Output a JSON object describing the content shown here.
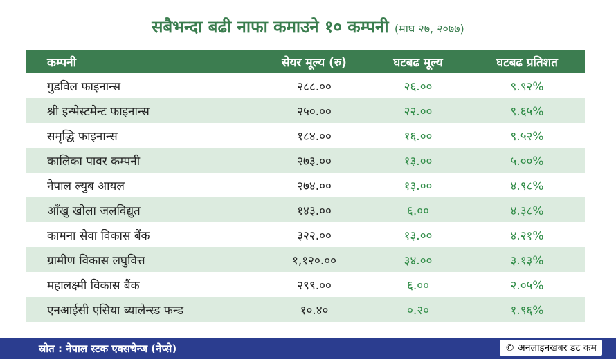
{
  "title": {
    "main": "सबैभन्दा बढी नाफा कमाउने १० कम्पनी",
    "date": "(माघ २७, २०७७)"
  },
  "table": {
    "headers": [
      "कम्पनी",
      "सेयर मूल्य (रु)",
      "घटबढ मूल्य",
      "घटबढ प्रतिशत"
    ],
    "rows": [
      [
        "गुडविल फाइनान्स",
        "२८८.००",
        "२६.००",
        "९.९२%"
      ],
      [
        "श्री इन्भेस्टमेन्ट फाइनान्स",
        "२५०.००",
        "२२.००",
        "९.६५%"
      ],
      [
        "समृद्धि फाइनान्स",
        "१८४.००",
        "१६.००",
        "९.५२%"
      ],
      [
        "कालिका पावर कम्पनी",
        "२७३.००",
        "१३.००",
        "५.००%"
      ],
      [
        "नेपाल ल्युब आयल",
        "२७४.००",
        "१३.००",
        "४.९८%"
      ],
      [
        "आँखु खोला जलविद्युत",
        "१४३.००",
        "६.००",
        "४.३८%"
      ],
      [
        "कामना सेवा विकास बैंक",
        "३२२.००",
        "१३.००",
        "४.२१%"
      ],
      [
        "ग्रामीण विकास लघुवित्त",
        "१,१२०.००",
        "३४.००",
        "३.१३%"
      ],
      [
        "महालक्ष्मी विकास बैंक",
        "२९९.००",
        "६.००",
        "२.०५%"
      ],
      [
        "एनआईसी एसिया ब्यालेन्स्ड फन्ड",
        "१०.४०",
        "०.२०",
        "१.९६%"
      ]
    ]
  },
  "footer": {
    "source": "स्रोत : नेपाल स्टक एक्सचेन्ज (नेप्से)",
    "credit": "© अनलाइनखबर डट कम"
  },
  "colors": {
    "title": "#3a7d4e",
    "header_bg": "#3c7d50",
    "row_alt_bg": "#dcebdf",
    "change_text": "#2e8b45",
    "footer_bg": "#2b3d8f"
  }
}
